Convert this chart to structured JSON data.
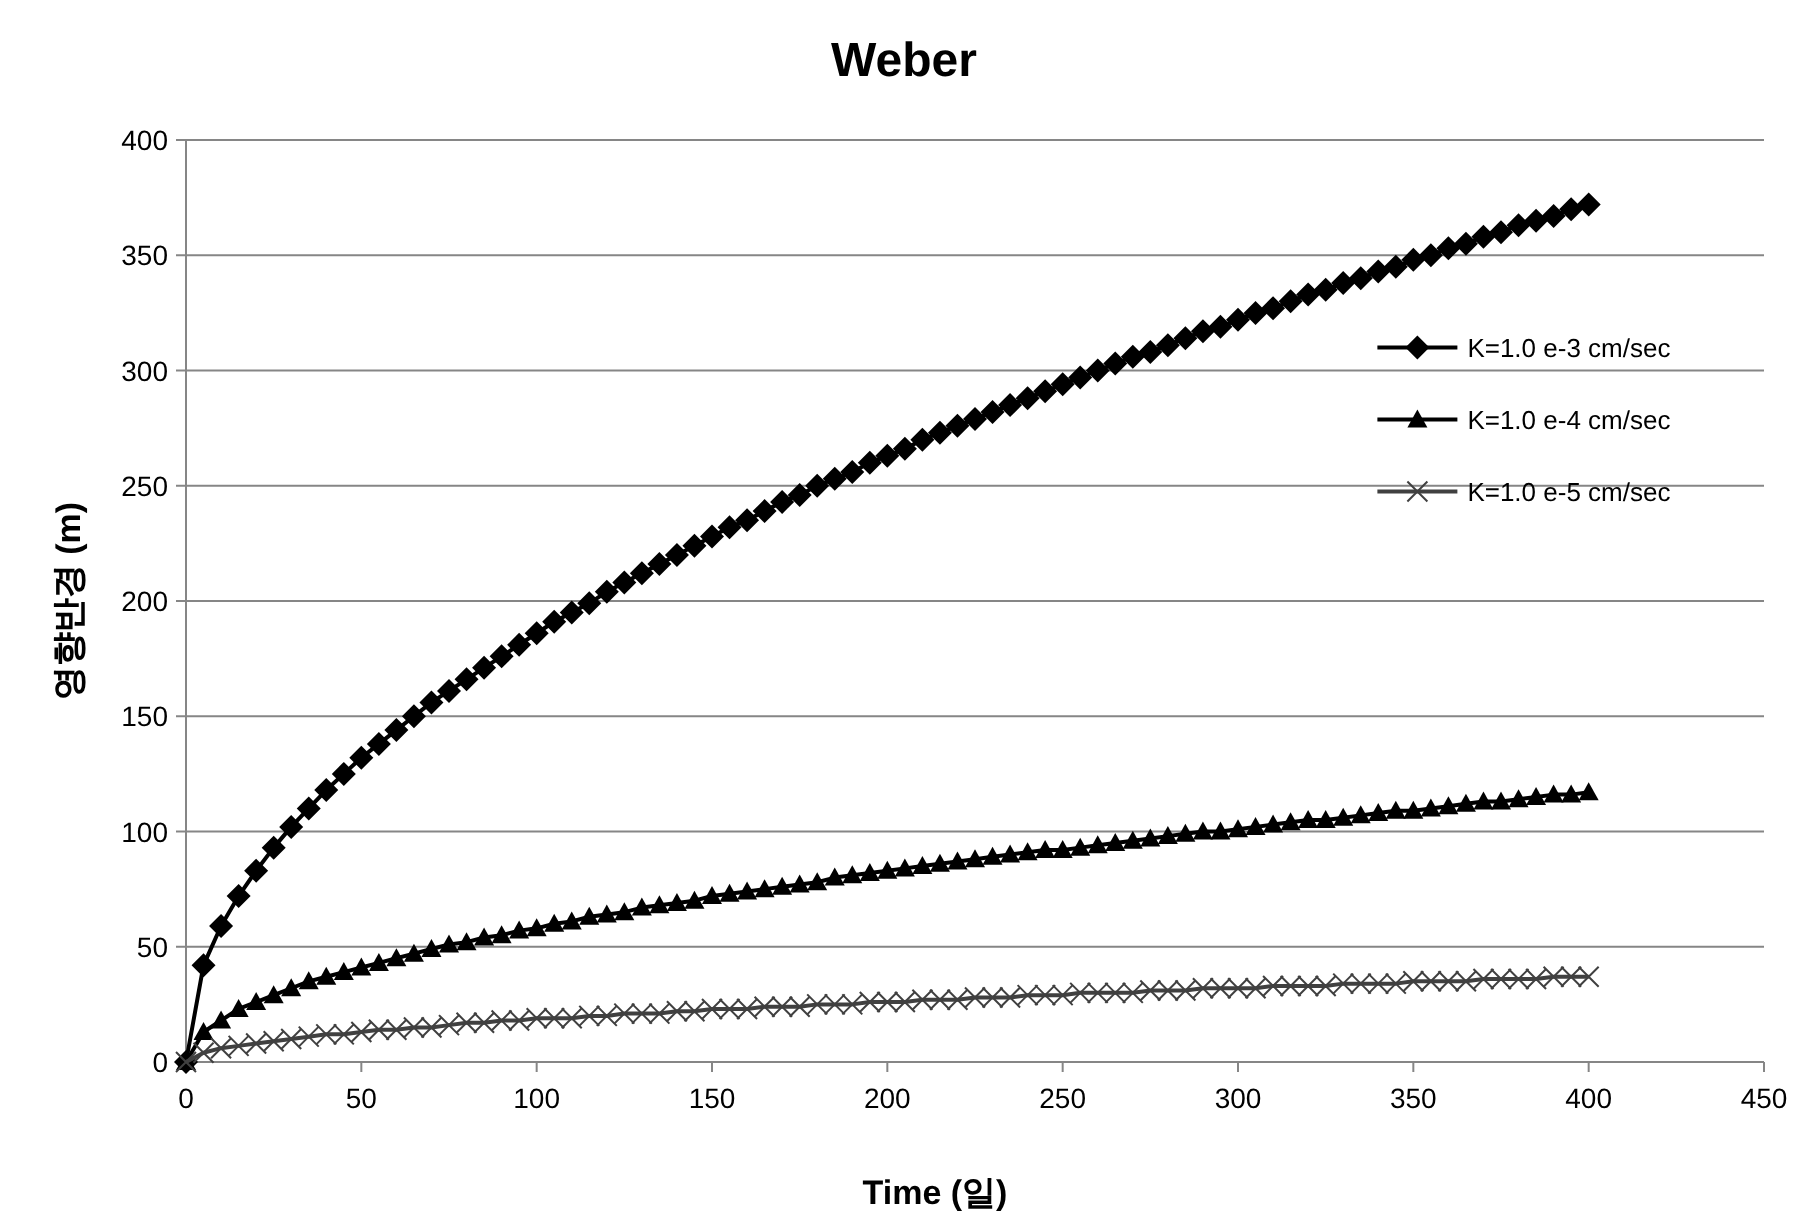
{
  "chart_data": {
    "type": "line",
    "title": "Weber",
    "xlabel": "Time (일)",
    "ylabel": "영향반경 (m)",
    "x": [
      0,
      5,
      10,
      15,
      20,
      25,
      30,
      35,
      40,
      45,
      50,
      55,
      60,
      65,
      70,
      75,
      80,
      85,
      90,
      95,
      100,
      105,
      110,
      115,
      120,
      125,
      130,
      135,
      140,
      145,
      150,
      155,
      160,
      165,
      170,
      175,
      180,
      185,
      190,
      195,
      200,
      205,
      210,
      215,
      220,
      225,
      230,
      235,
      240,
      245,
      250,
      255,
      260,
      265,
      270,
      275,
      280,
      285,
      290,
      295,
      300,
      305,
      310,
      315,
      320,
      325,
      330,
      335,
      340,
      345,
      350,
      355,
      360,
      365,
      370,
      375,
      380,
      385,
      390,
      395,
      400
    ],
    "xlim": [
      0,
      450
    ],
    "xticks": [
      0,
      50,
      100,
      150,
      200,
      250,
      300,
      350,
      400,
      450
    ],
    "ylim": [
      0,
      400
    ],
    "yticks": [
      0,
      50,
      100,
      150,
      200,
      250,
      300,
      350,
      400
    ],
    "grid": "y",
    "legend": "right",
    "series": [
      {
        "name": "K=1.0 e-3 cm/sec",
        "color": "#000000",
        "marker": "diamond",
        "values": [
          0,
          42,
          59,
          72,
          83,
          93,
          102,
          110,
          118,
          125,
          132,
          138,
          144,
          150,
          156,
          161,
          166,
          171,
          176,
          181,
          186,
          191,
          195,
          199,
          204,
          208,
          212,
          216,
          220,
          224,
          228,
          232,
          235,
          239,
          243,
          246,
          250,
          253,
          256,
          260,
          263,
          266,
          270,
          273,
          276,
          279,
          282,
          285,
          288,
          291,
          294,
          297,
          300,
          303,
          306,
          308,
          311,
          314,
          317,
          319,
          322,
          325,
          327,
          330,
          333,
          335,
          338,
          340,
          343,
          345,
          348,
          350,
          353,
          355,
          358,
          360,
          363,
          365,
          367,
          370,
          372
        ]
      },
      {
        "name": "K=1.0 e-4 cm/sec",
        "color": "#000000",
        "marker": "triangle",
        "values": [
          0,
          13,
          18,
          23,
          26,
          29,
          32,
          35,
          37,
          39,
          41,
          43,
          45,
          47,
          49,
          51,
          52,
          54,
          55,
          57,
          58,
          60,
          61,
          63,
          64,
          65,
          67,
          68,
          69,
          70,
          72,
          73,
          74,
          75,
          76,
          77,
          78,
          80,
          81,
          82,
          83,
          84,
          85,
          86,
          87,
          88,
          89,
          90,
          91,
          92,
          92,
          93,
          94,
          95,
          96,
          97,
          98,
          99,
          100,
          100,
          101,
          102,
          103,
          104,
          105,
          105,
          106,
          107,
          108,
          109,
          109,
          110,
          111,
          112,
          113,
          113,
          114,
          115,
          116,
          116,
          117
        ]
      },
      {
        "name": "K=1.0 e-5 cm/sec",
        "color": "#404040",
        "marker": "cross",
        "values": [
          0,
          4,
          6,
          7,
          8,
          9,
          10,
          11,
          12,
          12,
          13,
          14,
          14,
          15,
          15,
          16,
          17,
          17,
          18,
          18,
          19,
          19,
          19,
          20,
          20,
          21,
          21,
          21,
          22,
          22,
          23,
          23,
          23,
          24,
          24,
          24,
          25,
          25,
          25,
          26,
          26,
          26,
          27,
          27,
          27,
          28,
          28,
          28,
          29,
          29,
          29,
          30,
          30,
          30,
          30,
          31,
          31,
          31,
          32,
          32,
          32,
          32,
          33,
          33,
          33,
          33,
          34,
          34,
          34,
          34,
          35,
          35,
          35,
          35,
          36,
          36,
          36,
          36,
          37,
          37,
          37
        ]
      }
    ]
  }
}
